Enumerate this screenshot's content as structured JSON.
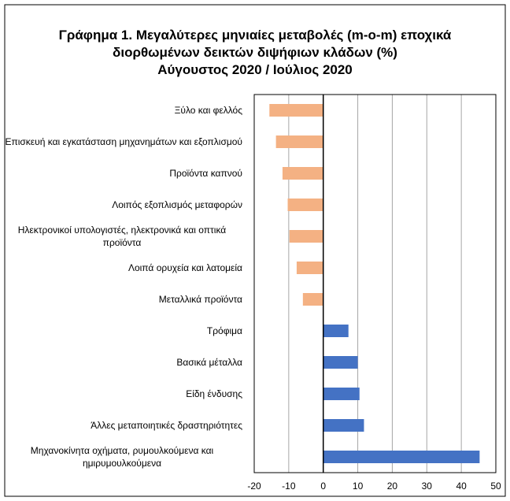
{
  "chart_data": {
    "type": "bar",
    "orientation": "horizontal",
    "title": "Γράφημα 1. Μεγαλύτερες μηνιαίες μεταβολές (m-o-m) εποχικά διορθωμένων δεικτών διψήφιων κλάδων (%)",
    "subtitle": "Αύγουστος 2020 / Ιούλιος 2020",
    "categories": [
      "Ξύλο και φελλός",
      "Επισκευή και εγκατάσταση μηχανημάτων και εξοπλισμού",
      "Προϊόντα καπνού",
      "Λοιπός εξοπλισμός μεταφορών",
      "Ηλεκτρονικοί υπολογιστές, ηλεκτρονικά και οπτικά προϊόντα",
      "Λοιπά ορυχεία και λατομεία",
      "Μεταλλικά προϊόντα",
      "Τρόφιμα",
      "Βασικά μέταλλα",
      "Είδη ένδυσης",
      "Άλλες μεταποιητικές δραστηριότητες",
      "Μηχανοκίνητα οχήματα, ρυμουλκούμενα και ημιρυμουλκούμενα"
    ],
    "values": [
      -15.6,
      -13.7,
      -11.8,
      -10.3,
      -9.8,
      -7.7,
      -5.9,
      7.3,
      10.0,
      10.5,
      11.8,
      45.3
    ],
    "colors": [
      "#f4b183",
      "#f4b183",
      "#f4b183",
      "#f4b183",
      "#f4b183",
      "#f4b183",
      "#f4b183",
      "#4472c4",
      "#4472c4",
      "#4472c4",
      "#4472c4",
      "#4472c4"
    ],
    "xlim": [
      -20,
      50
    ],
    "xticks": [
      -20,
      -10,
      0,
      10,
      20,
      30,
      40,
      50
    ],
    "grid": true
  }
}
